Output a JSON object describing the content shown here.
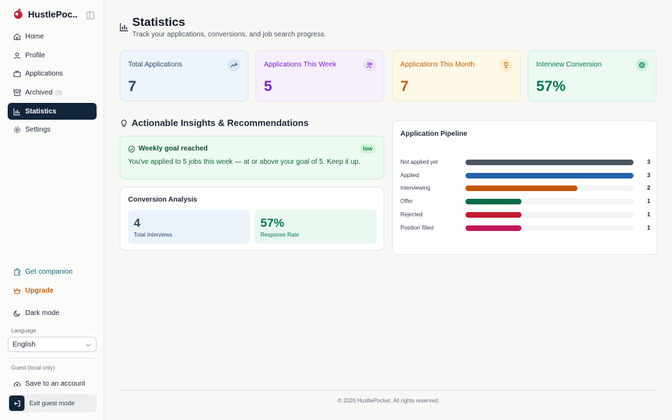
{
  "app": {
    "name": "HustlePoc..."
  },
  "sidebar": {
    "nav": [
      {
        "label": "Home",
        "icon": "home-icon"
      },
      {
        "label": "Profile",
        "icon": "user-icon"
      },
      {
        "label": "Applications",
        "icon": "briefcase-icon"
      },
      {
        "label": "Archived",
        "icon": "archive-icon",
        "count": "(0)"
      },
      {
        "label": "Statistics",
        "icon": "bar-chart-icon",
        "active": true
      },
      {
        "label": "Settings",
        "icon": "gear-icon"
      }
    ],
    "get_companion": "Get companion",
    "upgrade": "Upgrade",
    "dark_mode": "Dark mode",
    "language_label": "Language",
    "language_value": "English",
    "guest_label": "Guest (local only)",
    "save_account": "Save to an account",
    "exit_guest": "Exit guest mode"
  },
  "header": {
    "title": "Statistics",
    "subtitle": "Track your applications, conversions, and job search progress."
  },
  "stats": [
    {
      "label": "Total Applications",
      "value": "7",
      "icon": "trend-up-icon",
      "color": "#2c4a6b"
    },
    {
      "label": "Applications This Week",
      "value": "5",
      "icon": "users-icon",
      "color": "#7e22ce"
    },
    {
      "label": "Applications This Month",
      "value": "7",
      "icon": "trophy-icon",
      "color": "#c2610c"
    },
    {
      "label": "Interview Conversion",
      "value": "57%",
      "icon": "target-icon",
      "color": "#047857"
    }
  ],
  "insights": {
    "heading": "Actionable Insights & Recommendations",
    "item": {
      "title": "Weekly goal reached",
      "badge": "low",
      "text": "You've applied to 5 jobs this week — at or above your goal of 5. Keep it up."
    }
  },
  "conversion": {
    "title": "Conversion Analysis",
    "interviews_value": "4",
    "interviews_label": "Total Interviews",
    "rate_value": "57%",
    "rate_label": "Response Rate"
  },
  "pipeline": {
    "title": "Application Pipeline",
    "max": 3,
    "rows": [
      {
        "label": "Not applied yet",
        "value": 3,
        "color": "#4b5563"
      },
      {
        "label": "Applied",
        "value": 3,
        "color": "#2563a8"
      },
      {
        "label": "Interviewing",
        "value": 2,
        "color": "#c2570c"
      },
      {
        "label": "Offer",
        "value": 1,
        "color": "#0f6b47"
      },
      {
        "label": "Rejected",
        "value": 1,
        "color": "#c21c2c"
      },
      {
        "label": "Position filled",
        "value": 1,
        "color": "#c2185b"
      }
    ]
  },
  "footer": {
    "text": "© 2026 HustlePocket. All rights reserved."
  }
}
